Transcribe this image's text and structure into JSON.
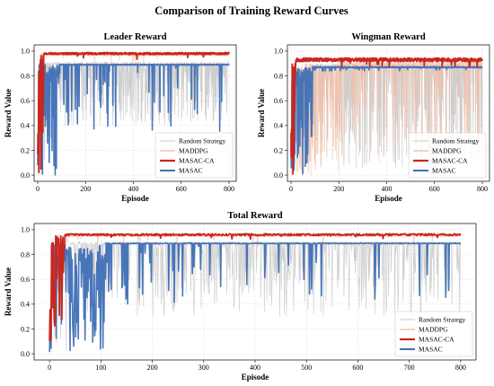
{
  "figure": {
    "title": "Comparison of Training Reward Curves"
  },
  "colors": {
    "Random Strategy": "#c9c9c9",
    "MADDPG": "#f2b9a0",
    "MASAC-CA": "#c8271f",
    "MASAC": "#3f6fb5",
    "grid": "#d9d9d9",
    "axis": "#222222"
  },
  "chart_data": [
    {
      "id": "leader",
      "type": "line",
      "title": "Leader Reward",
      "xlabel": "Episode",
      "ylabel": "Reward Value",
      "xlim": [
        -15,
        830
      ],
      "ylim": [
        -0.05,
        1.05
      ],
      "xticks": [
        0,
        200,
        400,
        600,
        800
      ],
      "yticks": [
        0.0,
        0.2,
        0.4,
        0.6,
        0.8,
        1.0
      ],
      "grid": true,
      "legend": "lower-right",
      "series": [
        {
          "name": "Random Strategy",
          "episodes": 800,
          "plateau": 0.9,
          "plateau_from": 30,
          "dip_min": 0.4,
          "noise": 0.012
        },
        {
          "name": "MADDPG",
          "episodes": 800,
          "plateau": 0.97,
          "plateau_from": 10,
          "dip_min": 0.9,
          "noise": 0.01
        },
        {
          "name": "MASAC-CA",
          "episodes": 800,
          "plateau": 0.98,
          "plateau_from": 25,
          "dip_min": 0.93,
          "noise": 0.008
        },
        {
          "name": "MASAC",
          "episodes": 800,
          "plateau": 0.89,
          "plateau_from": 90,
          "dip_min": 0.35,
          "noise": 0.004
        }
      ]
    },
    {
      "id": "wingman",
      "type": "line",
      "title": "Wingman Reward",
      "xlabel": "Episode",
      "ylabel": "Reward Value",
      "xlim": [
        -15,
        830
      ],
      "ylim": [
        -0.05,
        1.05
      ],
      "xticks": [
        0,
        200,
        400,
        600,
        800
      ],
      "yticks": [
        0.0,
        0.2,
        0.4,
        0.6,
        0.8,
        1.0
      ],
      "grid": true,
      "legend": "lower-right",
      "series": [
        {
          "name": "Random Strategy",
          "episodes": 800,
          "plateau": 0.88,
          "plateau_from": 60,
          "dip_min": 0.05,
          "noise": 0.02
        },
        {
          "name": "MADDPG",
          "episodes": 800,
          "plateau": 0.9,
          "plateau_from": 200,
          "dip_min": 0.1,
          "noise": 0.02
        },
        {
          "name": "MASAC-CA",
          "episodes": 800,
          "plateau": 0.93,
          "plateau_from": 20,
          "dip_min": 0.87,
          "noise": 0.015
        },
        {
          "name": "MASAC",
          "episodes": 800,
          "plateau": 0.87,
          "plateau_from": 90,
          "dip_min": 0.84,
          "noise": 0.005
        }
      ]
    },
    {
      "id": "total",
      "type": "line",
      "title": "Total Reward",
      "xlabel": "Episode",
      "ylabel": "Reward Value",
      "xlim": [
        -30,
        830
      ],
      "ylim": [
        -0.05,
        1.05
      ],
      "xticks": [
        0,
        100,
        200,
        300,
        400,
        500,
        600,
        700,
        800
      ],
      "yticks": [
        0.0,
        0.2,
        0.4,
        0.6,
        0.8,
        1.0
      ],
      "grid": true,
      "legend": "lower-right",
      "series": [
        {
          "name": "Random Strategy",
          "episodes": 800,
          "plateau": 0.89,
          "plateau_from": 40,
          "dip_min": 0.3,
          "noise": 0.015
        },
        {
          "name": "MADDPG",
          "episodes": 800,
          "plateau": 0.95,
          "plateau_from": 15,
          "dip_min": 0.85,
          "noise": 0.01
        },
        {
          "name": "MASAC-CA",
          "episodes": 800,
          "plateau": 0.96,
          "plateau_from": 30,
          "dip_min": 0.92,
          "noise": 0.008
        },
        {
          "name": "MASAC",
          "episodes": 800,
          "plateau": 0.89,
          "plateau_from": 110,
          "dip_min": 0.4,
          "noise": 0.004
        }
      ]
    }
  ]
}
